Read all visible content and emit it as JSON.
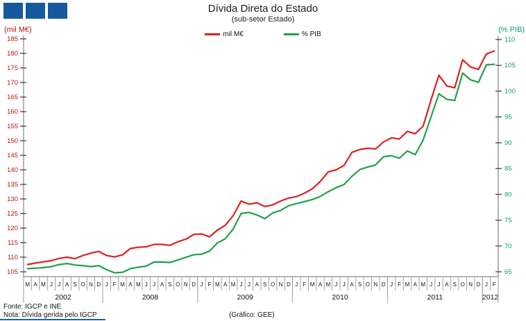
{
  "header": {
    "title": "Dívida Direta do Estado",
    "subtitle": "(sub-setor  Estado)"
  },
  "legend": {
    "items": [
      {
        "label": "mil M€",
        "color": "#dd1f1f"
      },
      {
        "label": "% PIB",
        "color": "#1fa04c"
      }
    ]
  },
  "footer": {
    "fonte": "Fonte: IGCP e INE",
    "nota": "Nota: Dívida gerida pelo IGCP",
    "grafico": "(Gráfico: GEE)"
  },
  "logo": {
    "squares": 3,
    "color": "#15599e"
  },
  "colors": {
    "red_line": "#dd1f1f",
    "red_axis_text": "#b31515",
    "green_line": "#1fa04c",
    "green_axis_text": "#0c9e6e",
    "axis_gray": "#9c9c9c",
    "tick_dark": "#444444",
    "logo_blue": "#15599e",
    "bottom_line_blue": "#1d5fa8"
  },
  "chart_data": {
    "type": "line",
    "title": "Dívida Direta do Estado",
    "subtitle": "(sub-setor Estado)",
    "grid": false,
    "legend_position": "top-center",
    "x_months": [
      "M",
      "A",
      "M",
      "J",
      "J",
      "A",
      "S",
      "O",
      "N",
      "D",
      "J",
      "F",
      "M",
      "A",
      "M",
      "J",
      "J",
      "A",
      "S",
      "O",
      "N",
      "D",
      "J",
      "F",
      "M",
      "A",
      "M",
      "J",
      "J",
      "A",
      "S",
      "O",
      "N",
      "D",
      "J",
      "F",
      "M",
      "A",
      "M",
      "J",
      "J",
      "A",
      "S",
      "O",
      "N",
      "D",
      "J",
      "F",
      "M",
      "A",
      "M",
      "J",
      "J",
      "A",
      "S",
      "O",
      "N",
      "D",
      "J",
      "F"
    ],
    "year_groups": [
      {
        "label": "2002",
        "months": 10
      },
      {
        "label": "2008",
        "months": 12
      },
      {
        "label": "2009",
        "months": 12
      },
      {
        "label": "2010",
        "months": 12
      },
      {
        "label": "2011",
        "months": 12
      },
      {
        "label": "2012",
        "months": 2
      }
    ],
    "left_axis": {
      "label": "(mil M€)",
      "min": 105,
      "max": 185,
      "step": 5,
      "color": "#b31515"
    },
    "right_axis": {
      "label": "(% PIB)",
      "min": 65,
      "max": 110,
      "step": 5,
      "color": "#0c9e6e"
    },
    "series": [
      {
        "name": "mil M€",
        "axis": "left",
        "color": "#dd1f1f",
        "values": [
          107.5,
          108.0,
          108.4,
          108.8,
          109.6,
          110.0,
          109.5,
          110.6,
          111.4,
          112.0,
          110.6,
          110.1,
          110.8,
          113.0,
          113.4,
          113.6,
          114.4,
          114.4,
          114.1,
          115.3,
          116.2,
          117.8,
          118.0,
          117.0,
          119.3,
          121.0,
          124.3,
          129.3,
          128.2,
          128.7,
          127.4,
          128.0,
          129.3,
          130.3,
          130.8,
          132.0,
          133.5,
          136.0,
          139.3,
          140.0,
          141.5,
          146.0,
          147.0,
          147.4,
          147.2,
          149.6,
          151.0,
          150.6,
          153.2,
          152.4,
          155.0,
          164.0,
          172.5,
          168.8,
          168.2,
          177.8,
          175.3,
          174.5,
          179.8,
          180.8
        ]
      },
      {
        "name": "% PIB",
        "axis": "right",
        "color": "#1fa04c",
        "values": [
          65.6,
          65.7,
          65.8,
          66.0,
          66.4,
          66.6,
          66.3,
          66.2,
          66.0,
          66.2,
          65.4,
          64.8,
          64.9,
          65.6,
          65.9,
          66.1,
          66.9,
          66.9,
          66.8,
          67.3,
          67.8,
          68.3,
          68.4,
          69.0,
          70.6,
          71.4,
          73.3,
          76.3,
          76.5,
          76.0,
          75.3,
          76.4,
          76.9,
          77.8,
          78.2,
          78.6,
          79.0,
          79.6,
          80.5,
          81.3,
          81.9,
          83.5,
          84.8,
          85.3,
          85.7,
          87.3,
          87.5,
          87.0,
          88.4,
          87.7,
          90.5,
          95.0,
          99.5,
          98.4,
          98.2,
          103.5,
          102.2,
          101.7,
          105.1,
          105.2
        ]
      }
    ]
  }
}
